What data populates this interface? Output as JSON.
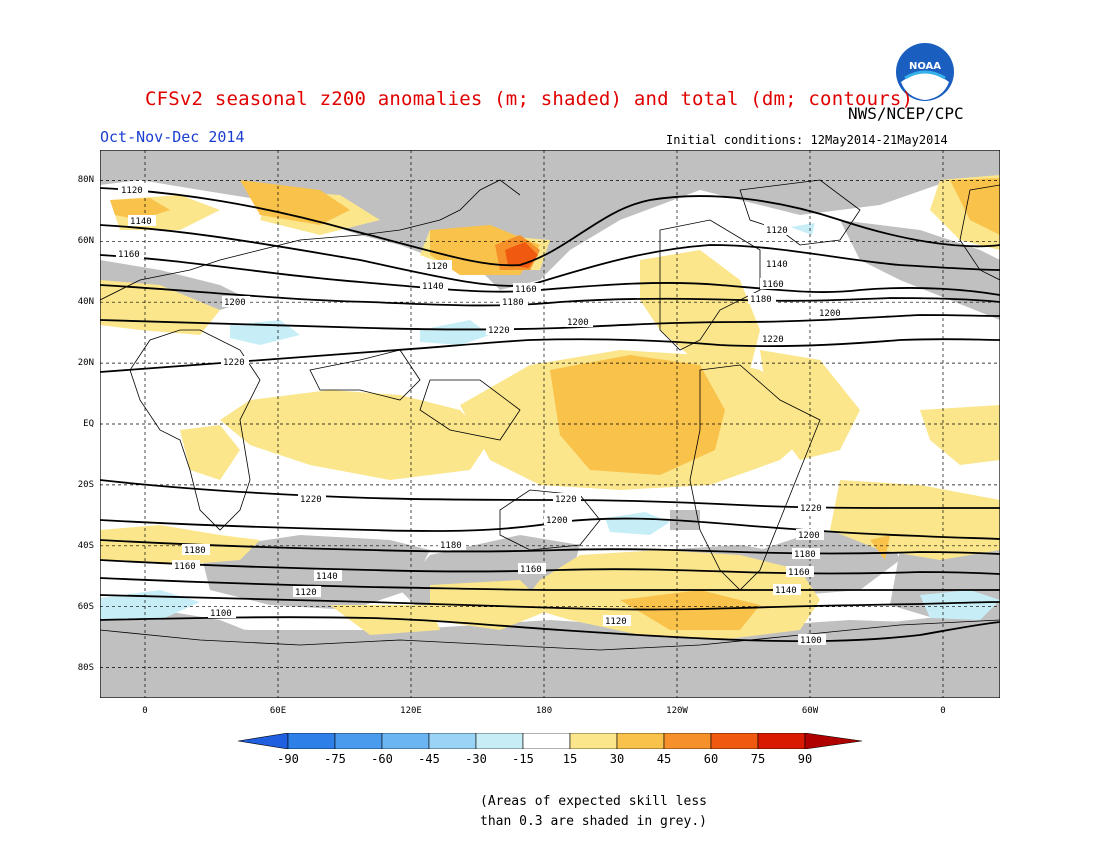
{
  "header": {
    "title": "CFSv2 seasonal z200 anomalies (m; shaded) and total (dm; contours)",
    "agency": "NWS/NCEP/CPC",
    "season": "Oct-Nov-Dec 2014",
    "initial_conditions": "Initial conditions: 12May2014-21May2014",
    "logo_text": "NOAA"
  },
  "axes": {
    "lat_labels": [
      "80N",
      "60N",
      "40N",
      "20N",
      "EQ",
      "20S",
      "40S",
      "60S",
      "80S"
    ],
    "lon_labels": [
      "0",
      "60E",
      "120E",
      "180",
      "120W",
      "60W",
      "0"
    ]
  },
  "contours": {
    "labels": [
      "1100",
      "1120",
      "1140",
      "1160",
      "1180",
      "1200",
      "1220"
    ]
  },
  "colorbar": {
    "labels": [
      "-90",
      "-75",
      "-60",
      "-45",
      "-30",
      "-15",
      "15",
      "30",
      "45",
      "60",
      "75",
      "90"
    ],
    "colors": [
      "#1f5fe0",
      "#2f7fe8",
      "#4a9aee",
      "#6bb6f2",
      "#99d3f5",
      "#c7eef7",
      "#ffffff",
      "#fbe68c",
      "#f9c24a",
      "#f6902a",
      "#f05a10",
      "#d91a00",
      "#b00000"
    ]
  },
  "note": {
    "line1": "(Areas of expected skill less",
    "line2": "than 0.3 are shaded in grey.)"
  },
  "colors": {
    "title": "#e00000",
    "season": "#1a3fd0",
    "skill_grey": "#c0c0c0"
  }
}
